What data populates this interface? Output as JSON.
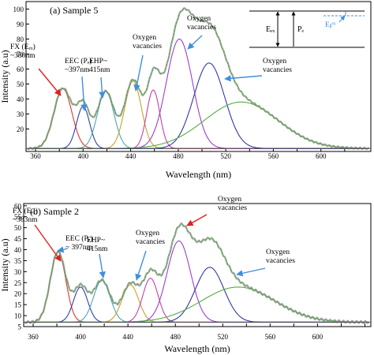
{
  "colors": {
    "red": "#e8322c",
    "blue_peak": "#2f3fb0",
    "cyan": "#4aa6b6",
    "yellow": "#c9a227",
    "magenta": "#c43fae",
    "purple": "#9b3fd0",
    "navy": "#3138a8",
    "green": "#4fae3f",
    "arrow_blue": "#3f8fe0",
    "arrow_red": "#e02020",
    "frame": "#000000"
  },
  "chart_data": [
    {
      "type": "line",
      "title": "(a)   Sample 5",
      "xlabel": "Wavelength (nm)",
      "ylabel": "Intensity (a.u)",
      "xlim": [
        352,
        642
      ],
      "ylim": [
        5,
        105
      ],
      "xticks": [
        360,
        380,
        400,
        420,
        440,
        460,
        480,
        500,
        520,
        540,
        560,
        580,
        600,
        620
      ],
      "xtick_labels": [
        "360",
        "",
        "400",
        "",
        "440",
        "",
        "480",
        "",
        "520",
        "",
        "560",
        "",
        "600",
        ""
      ],
      "yticks": [
        20,
        30,
        40,
        50,
        60,
        70,
        80,
        90,
        100
      ],
      "yticklabels": [
        "20",
        "30",
        "40",
        "50",
        "60",
        "70",
        "80",
        "90",
        "100"
      ],
      "baseline": 7,
      "series": [
        {
          "key": "fx",
          "color": "red",
          "center": 383,
          "amplitude": 40,
          "width": 7.5
        },
        {
          "key": "eec",
          "color": "blue_peak",
          "center": 400,
          "amplitude": 28,
          "width": 5.5
        },
        {
          "key": "ehp",
          "color": "cyan",
          "center": 419,
          "amplitude": 38,
          "width": 7.0
        },
        {
          "key": "ov1",
          "color": "yellow",
          "center": 442,
          "amplitude": 45,
          "width": 7.0
        },
        {
          "key": "ov2",
          "color": "magenta",
          "center": 459,
          "amplitude": 39,
          "width": 5.5
        },
        {
          "key": "ov3",
          "color": "purple",
          "center": 481,
          "amplitude": 73,
          "width": 11.0
        },
        {
          "key": "ov4",
          "color": "navy",
          "center": 506,
          "amplitude": 57,
          "width": 13.0
        },
        {
          "key": "ov5",
          "color": "green",
          "center": 533,
          "amplitude": 31,
          "width": 31.0
        }
      ],
      "annotations": [
        {
          "text": [
            "FX (Eₑₓ)",
            "~380nm"
          ],
          "color": "arrow_red"
        },
        {
          "text": [
            "EEC (Pₑ)",
            "~397nm"
          ],
          "color": "arrow_blue"
        },
        {
          "text": [
            "EHP~",
            "415nm"
          ],
          "color": "arrow_blue"
        },
        {
          "text": [
            "Oxygen",
            "vacancies"
          ],
          "color": "arrow_blue"
        },
        {
          "text": [
            "Oxygen",
            "vacancies"
          ],
          "color": "arrow_blue"
        },
        {
          "text": [
            "Oxygen",
            "vacancies"
          ],
          "color": "arrow_blue"
        }
      ],
      "inset": {
        "e_ex": "Eₑₓ",
        "p_e": "Pₑ",
        "e_b": "Eᵦᵉˣ"
      }
    },
    {
      "type": "line",
      "title": "(b) Sample 2",
      "xlabel": "Wavelength (nm)",
      "ylabel": "Intensity (a.u)",
      "xlim": [
        352,
        645
      ],
      "ylim": [
        5,
        61
      ],
      "xticks": [
        360,
        380,
        400,
        420,
        440,
        460,
        480,
        500,
        520,
        540,
        560,
        580,
        600,
        620,
        640
      ],
      "xtick_labels": [
        "360",
        "",
        "400",
        "",
        "440",
        "",
        "480",
        "",
        "520",
        "",
        "560",
        "",
        "600",
        "",
        ""
      ],
      "yticks": [
        5,
        10,
        15,
        20,
        25,
        30,
        35,
        40,
        45,
        50,
        55,
        60
      ],
      "yticklabels": [
        "5",
        "10",
        "15",
        "20",
        "25",
        "30",
        "35",
        "40",
        "45",
        "50",
        "55",
        "60"
      ],
      "baseline": 7,
      "series": [
        {
          "key": "fx",
          "color": "red",
          "center": 381,
          "amplitude": 32,
          "width": 6.5
        },
        {
          "key": "eec",
          "color": "blue_peak",
          "center": 400,
          "amplitude": 16,
          "width": 6.0
        },
        {
          "key": "ehp",
          "color": "cyan",
          "center": 418,
          "amplitude": 19,
          "width": 7.0
        },
        {
          "key": "ov1",
          "color": "yellow",
          "center": 442,
          "amplitude": 17,
          "width": 7.0
        },
        {
          "key": "ov2",
          "color": "magenta",
          "center": 459,
          "amplitude": 20,
          "width": 6.5
        },
        {
          "key": "ov3",
          "color": "purple",
          "center": 483,
          "amplitude": 37,
          "width": 10.0
        },
        {
          "key": "ov4",
          "color": "navy",
          "center": 509,
          "amplitude": 25,
          "width": 12.0
        },
        {
          "key": "ov5",
          "color": "green",
          "center": 533,
          "amplitude": 16,
          "width": 31.0
        }
      ],
      "annotations": [
        {
          "text": [
            "FX (Eₑₓ)",
            "~383nm"
          ],
          "color": "arrow_red"
        },
        {
          "text": [
            "EEC (Pₑ)",
            "~ 397nm"
          ],
          "color": "arrow_blue"
        },
        {
          "text": [
            "EHP~",
            "415nm"
          ],
          "color": "arrow_blue"
        },
        {
          "text": [
            "Oxygen",
            "vacancies"
          ],
          "color": "arrow_blue"
        },
        {
          "text": [
            "Oxygen",
            "vacancies"
          ],
          "color": "arrow_red"
        },
        {
          "text": [
            "Oxygen",
            "vacancies"
          ],
          "color": "arrow_blue"
        }
      ]
    }
  ]
}
